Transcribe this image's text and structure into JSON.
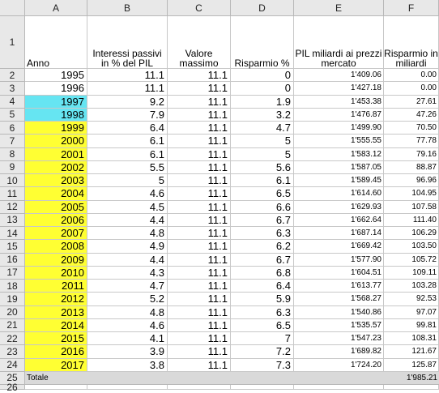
{
  "colors": {
    "cyan": "#66e5f2",
    "yellow": "#ffff33",
    "header_bg": "#e8e8e8",
    "total_bg": "#d9d9d9"
  },
  "column_letters": [
    "A",
    "B",
    "C",
    "D",
    "E",
    "F"
  ],
  "header_row": {
    "row_number": "1",
    "anno": "Anno",
    "interessi": "Interessi passivi in % del PIL",
    "valore": "Valore massimo",
    "risparmio_pct": "Risparmio %",
    "pil": "PIL miliardi ai prezzi mercato",
    "risparmio_mld": "Risparmio in miliardi"
  },
  "rows": [
    {
      "row": "2",
      "anno": "1995",
      "interessi": "11.1",
      "valore": "11.1",
      "risparmio_pct": "0",
      "pil": "1'409.06",
      "risparmio_mld": "0.00",
      "fill": "none"
    },
    {
      "row": "3",
      "anno": "1996",
      "interessi": "11.1",
      "valore": "11.1",
      "risparmio_pct": "0",
      "pil": "1'427.18",
      "risparmio_mld": "0.00",
      "fill": "none"
    },
    {
      "row": "4",
      "anno": "1997",
      "interessi": "9.2",
      "valore": "11.1",
      "risparmio_pct": "1.9",
      "pil": "1'453.38",
      "risparmio_mld": "27.61",
      "fill": "cyan"
    },
    {
      "row": "5",
      "anno": "1998",
      "interessi": "7.9",
      "valore": "11.1",
      "risparmio_pct": "3.2",
      "pil": "1'476.87",
      "risparmio_mld": "47.26",
      "fill": "cyan"
    },
    {
      "row": "6",
      "anno": "1999",
      "interessi": "6.4",
      "valore": "11.1",
      "risparmio_pct": "4.7",
      "pil": "1'499.90",
      "risparmio_mld": "70.50",
      "fill": "yellow"
    },
    {
      "row": "7",
      "anno": "2000",
      "interessi": "6.1",
      "valore": "11.1",
      "risparmio_pct": "5",
      "pil": "1'555.55",
      "risparmio_mld": "77.78",
      "fill": "yellow"
    },
    {
      "row": "8",
      "anno": "2001",
      "interessi": "6.1",
      "valore": "11.1",
      "risparmio_pct": "5",
      "pil": "1'583.12",
      "risparmio_mld": "79.16",
      "fill": "yellow"
    },
    {
      "row": "9",
      "anno": "2002",
      "interessi": "5.5",
      "valore": "11.1",
      "risparmio_pct": "5.6",
      "pil": "1'587.05",
      "risparmio_mld": "88.87",
      "fill": "yellow"
    },
    {
      "row": "10",
      "anno": "2003",
      "interessi": "5",
      "valore": "11.1",
      "risparmio_pct": "6.1",
      "pil": "1'589.45",
      "risparmio_mld": "96.96",
      "fill": "yellow"
    },
    {
      "row": "11",
      "anno": "2004",
      "interessi": "4.6",
      "valore": "11.1",
      "risparmio_pct": "6.5",
      "pil": "1'614.60",
      "risparmio_mld": "104.95",
      "fill": "yellow"
    },
    {
      "row": "12",
      "anno": "2005",
      "interessi": "4.5",
      "valore": "11.1",
      "risparmio_pct": "6.6",
      "pil": "1'629.93",
      "risparmio_mld": "107.58",
      "fill": "yellow"
    },
    {
      "row": "13",
      "anno": "2006",
      "interessi": "4.4",
      "valore": "11.1",
      "risparmio_pct": "6.7",
      "pil": "1'662.64",
      "risparmio_mld": "111.40",
      "fill": "yellow"
    },
    {
      "row": "14",
      "anno": "2007",
      "interessi": "4.8",
      "valore": "11.1",
      "risparmio_pct": "6.3",
      "pil": "1'687.14",
      "risparmio_mld": "106.29",
      "fill": "yellow"
    },
    {
      "row": "15",
      "anno": "2008",
      "interessi": "4.9",
      "valore": "11.1",
      "risparmio_pct": "6.2",
      "pil": "1'669.42",
      "risparmio_mld": "103.50",
      "fill": "yellow"
    },
    {
      "row": "16",
      "anno": "2009",
      "interessi": "4.4",
      "valore": "11.1",
      "risparmio_pct": "6.7",
      "pil": "1'577.90",
      "risparmio_mld": "105.72",
      "fill": "yellow"
    },
    {
      "row": "17",
      "anno": "2010",
      "interessi": "4.3",
      "valore": "11.1",
      "risparmio_pct": "6.8",
      "pil": "1'604.51",
      "risparmio_mld": "109.11",
      "fill": "yellow"
    },
    {
      "row": "18",
      "anno": "2011",
      "interessi": "4.7",
      "valore": "11.1",
      "risparmio_pct": "6.4",
      "pil": "1'613.77",
      "risparmio_mld": "103.28",
      "fill": "yellow"
    },
    {
      "row": "19",
      "anno": "2012",
      "interessi": "5.2",
      "valore": "11.1",
      "risparmio_pct": "5.9",
      "pil": "1'568.27",
      "risparmio_mld": "92.53",
      "fill": "yellow"
    },
    {
      "row": "20",
      "anno": "2013",
      "interessi": "4.8",
      "valore": "11.1",
      "risparmio_pct": "6.3",
      "pil": "1'540.86",
      "risparmio_mld": "97.07",
      "fill": "yellow"
    },
    {
      "row": "21",
      "anno": "2014",
      "interessi": "4.6",
      "valore": "11.1",
      "risparmio_pct": "6.5",
      "pil": "1'535.57",
      "risparmio_mld": "99.81",
      "fill": "yellow"
    },
    {
      "row": "22",
      "anno": "2015",
      "interessi": "4.1",
      "valore": "11.1",
      "risparmio_pct": "7",
      "pil": "1'547.23",
      "risparmio_mld": "108.31",
      "fill": "yellow"
    },
    {
      "row": "23",
      "anno": "2016",
      "interessi": "3.9",
      "valore": "11.1",
      "risparmio_pct": "7.2",
      "pil": "1'689.82",
      "risparmio_mld": "121.67",
      "fill": "yellow"
    },
    {
      "row": "24",
      "anno": "2017",
      "interessi": "3.8",
      "valore": "11.1",
      "risparmio_pct": "7.3",
      "pil": "1'724.20",
      "risparmio_mld": "125.87",
      "fill": "yellow"
    }
  ],
  "total_row": {
    "row": "25",
    "label": "Totale",
    "value": "1'985.21"
  },
  "trailing_row": "26"
}
